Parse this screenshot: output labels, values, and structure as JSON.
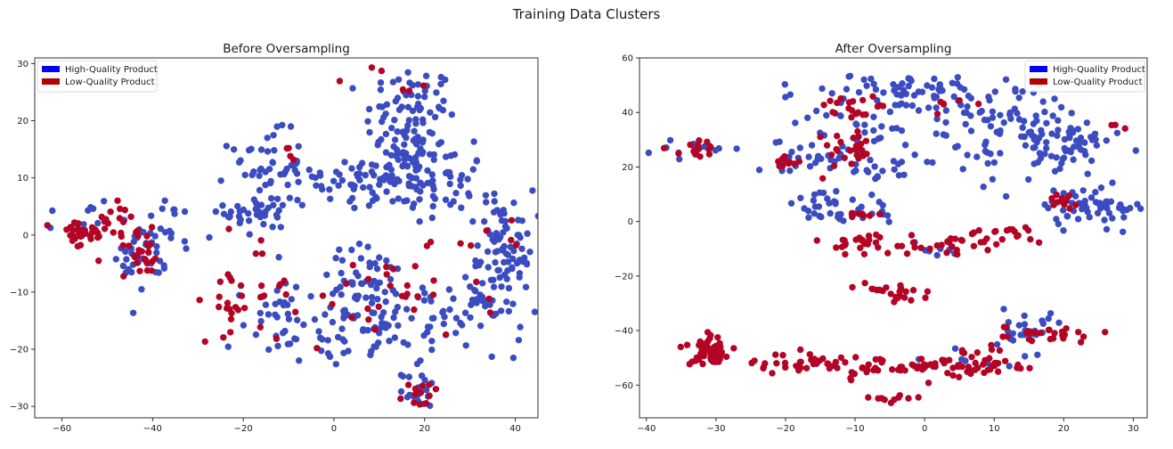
{
  "figure": {
    "title": "Training Data Clusters"
  },
  "colors": {
    "high": "#3b4cc0",
    "low": "#b40426",
    "legend_high": "#0000ff",
    "legend_low": "#b30000",
    "frame": "#1a1a1a"
  },
  "chart_data": [
    {
      "type": "scatter",
      "title": "Before Oversampling",
      "xlabel": "",
      "ylabel": "",
      "xlim": [
        -66,
        45
      ],
      "ylim": [
        -32,
        31
      ],
      "xticks": [
        -60,
        -40,
        -20,
        0,
        20,
        40
      ],
      "yticks": [
        -30,
        -20,
        -10,
        0,
        10,
        20,
        30
      ],
      "legend": {
        "placement": "top-left",
        "entries": [
          "High-Quality Product",
          "Low-Quality Product"
        ]
      },
      "grid": false,
      "series": [
        {
          "name": "High-Quality Product",
          "color_key": "high",
          "clusters": [
            {
              "cx": 17,
              "cy": 20,
              "sx": 5,
              "sy": 5,
              "n": 95
            },
            {
              "cx": 12,
              "cy": 10,
              "sx": 7,
              "sy": 3,
              "n": 85
            },
            {
              "cx": 25,
              "cy": 8,
              "sx": 4,
              "sy": 4,
              "n": 35
            },
            {
              "cx": -15,
              "cy": 12,
              "sx": 4,
              "sy": 3,
              "n": 45
            },
            {
              "cx": -16,
              "cy": 4,
              "sx": 4,
              "sy": 2.5,
              "n": 35
            },
            {
              "cx": -4,
              "cy": 8,
              "sx": 4,
              "sy": 1.2,
              "n": 12
            },
            {
              "cx": 38,
              "cy": 0,
              "sx": 3,
              "sy": 4,
              "n": 55
            },
            {
              "cx": 35,
              "cy": -10,
              "sx": 5,
              "sy": 4,
              "n": 45
            },
            {
              "cx": 24,
              "cy": -15,
              "sx": 6,
              "sy": 3,
              "n": 45
            },
            {
              "cx": 8,
              "cy": -10,
              "sx": 6,
              "sy": 4,
              "n": 65
            },
            {
              "cx": -2,
              "cy": -17,
              "sx": 6,
              "sy": 3,
              "n": 40
            },
            {
              "cx": -15,
              "cy": -12,
              "sx": 4,
              "sy": 4,
              "n": 20
            },
            {
              "cx": -38,
              "cy": 0,
              "sx": 3.5,
              "sy": 3,
              "n": 30
            },
            {
              "cx": -43,
              "cy": -4,
              "sx": 2.5,
              "sy": 2.5,
              "n": 25
            },
            {
              "cx": -55,
              "cy": 3,
              "sx": 3,
              "sy": 2,
              "n": 12
            },
            {
              "cx": 19,
              "cy": -27,
              "sx": 2,
              "sy": 1.5,
              "n": 20
            },
            {
              "cx": 8,
              "cy": -19,
              "sx": 3,
              "sy": 2,
              "n": 12
            }
          ]
        },
        {
          "name": "Low-Quality Product",
          "color_key": "low",
          "clusters": [
            {
              "cx": -56,
              "cy": 0,
              "sx": 3,
              "sy": 1.5,
              "n": 30
            },
            {
              "cx": -48,
              "cy": 2,
              "sx": 3,
              "sy": 2.5,
              "n": 15
            },
            {
              "cx": -42,
              "cy": -3,
              "sx": 2.5,
              "sy": 2,
              "n": 25
            },
            {
              "cx": -18,
              "cy": -9,
              "sx": 5,
              "sy": 5,
              "n": 25
            },
            {
              "cx": -23,
              "cy": -13,
              "sx": 2,
              "sy": 2,
              "n": 10
            },
            {
              "cx": 12,
              "cy": -11,
              "sx": 10,
              "sy": 4,
              "n": 30
            },
            {
              "cx": 19,
              "cy": -28,
              "sx": 2,
              "sy": 1.5,
              "n": 12
            },
            {
              "cx": 14,
              "cy": 24,
              "sx": 5,
              "sy": 3,
              "n": 6
            },
            {
              "cx": 34,
              "cy": 0,
              "sx": 6,
              "sy": 4,
              "n": 6
            },
            {
              "cx": -10,
              "cy": 15,
              "sx": 2,
              "sy": 1,
              "n": 4
            }
          ]
        }
      ]
    },
    {
      "type": "scatter",
      "title": "After Oversampling",
      "xlabel": "",
      "ylabel": "",
      "xlim": [
        -41,
        32
      ],
      "ylim": [
        -72,
        60
      ],
      "xticks": [
        -40,
        -30,
        -20,
        -10,
        0,
        10,
        20,
        30
      ],
      "yticks": [
        -60,
        -40,
        -20,
        0,
        20,
        40,
        60
      ],
      "legend": {
        "placement": "top-right",
        "entries": [
          "High-Quality Product",
          "Low-Quality Product"
        ]
      },
      "grid": false,
      "series": [
        {
          "name": "High-Quality Product",
          "color_key": "high",
          "clusters": [
            {
              "cx": 0,
              "cy": 47,
              "sx": 8,
              "sy": 4,
              "n": 80
            },
            {
              "cx": 12,
              "cy": 30,
              "sx": 5,
              "sy": 7,
              "n": 80
            },
            {
              "cx": 20,
              "cy": 30,
              "sx": 5,
              "sy": 4,
              "n": 40
            },
            {
              "cx": -11,
              "cy": 30,
              "sx": 5,
              "sy": 6,
              "n": 40
            },
            {
              "cx": -17,
              "cy": 22,
              "sx": 3,
              "sy": 2,
              "n": 20
            },
            {
              "cx": -5,
              "cy": 18,
              "sx": 3,
              "sy": 2,
              "n": 15
            },
            {
              "cx": -14,
              "cy": 6,
              "sx": 4,
              "sy": 3,
              "n": 25
            },
            {
              "cx": -13,
              "cy": 2,
              "sx": 5,
              "sy": 1,
              "n": 15
            },
            {
              "cx": 24,
              "cy": 5,
              "sx": 4,
              "sy": 4,
              "n": 60
            },
            {
              "cx": 14,
              "cy": -38,
              "sx": 3,
              "sy": 3,
              "n": 25
            },
            {
              "cx": -34,
              "cy": 27,
              "sx": 3,
              "sy": 1.5,
              "n": 15
            },
            {
              "cx": 3,
              "cy": -10,
              "sx": 3,
              "sy": 1.5,
              "n": 8
            },
            {
              "cx": 9,
              "cy": -50,
              "sx": 4,
              "sy": 2,
              "n": 8
            }
          ]
        },
        {
          "name": "Low-Quality Product",
          "color_key": "low",
          "clusters": [
            {
              "cx": -33,
              "cy": 26,
              "sx": 2,
              "sy": 2,
              "n": 15
            },
            {
              "cx": -20,
              "cy": 22,
              "sx": 1.5,
              "sy": 2,
              "n": 10
            },
            {
              "cx": -11,
              "cy": 43,
              "sx": 3,
              "sy": 3,
              "n": 20
            },
            {
              "cx": -11,
              "cy": 27,
              "sx": 3,
              "sy": 4,
              "n": 25
            },
            {
              "cx": -9,
              "cy": 2,
              "sx": 2,
              "sy": 0.8,
              "n": 10
            },
            {
              "cx": -9,
              "cy": -8,
              "sx": 3,
              "sy": 2,
              "n": 25
            },
            {
              "cx": 5,
              "cy": -8,
              "sx": 5,
              "sy": 2,
              "n": 30
            },
            {
              "cx": 12,
              "cy": -4,
              "sx": 2,
              "sy": 1.5,
              "n": 10
            },
            {
              "cx": -7,
              "cy": -25,
              "sx": 2,
              "sy": 1,
              "n": 12
            },
            {
              "cx": -2,
              "cy": -26,
              "sx": 1.5,
              "sy": 2,
              "n": 10
            },
            {
              "cx": -31,
              "cy": -48,
              "sx": 2,
              "sy": 3,
              "n": 50
            },
            {
              "cx": -18,
              "cy": -52,
              "sx": 5,
              "sy": 2,
              "n": 30
            },
            {
              "cx": -9,
              "cy": -54,
              "sx": 4,
              "sy": 2.5,
              "n": 25
            },
            {
              "cx": 1,
              "cy": -53,
              "sx": 4,
              "sy": 2,
              "n": 40
            },
            {
              "cx": 10,
              "cy": -52,
              "sx": 4,
              "sy": 3,
              "n": 25
            },
            {
              "cx": 18,
              "cy": -41,
              "sx": 3,
              "sy": 1.5,
              "n": 25
            },
            {
              "cx": -5,
              "cy": -65,
              "sx": 1.5,
              "sy": 0.8,
              "n": 10
            },
            {
              "cx": 20,
              "cy": 8,
              "sx": 1,
              "sy": 2,
              "n": 12
            },
            {
              "cx": 3,
              "cy": 42,
              "sx": 3,
              "sy": 3,
              "n": 6
            },
            {
              "cx": 27,
              "cy": 35,
              "sx": 1,
              "sy": 1,
              "n": 3
            }
          ]
        }
      ]
    }
  ]
}
